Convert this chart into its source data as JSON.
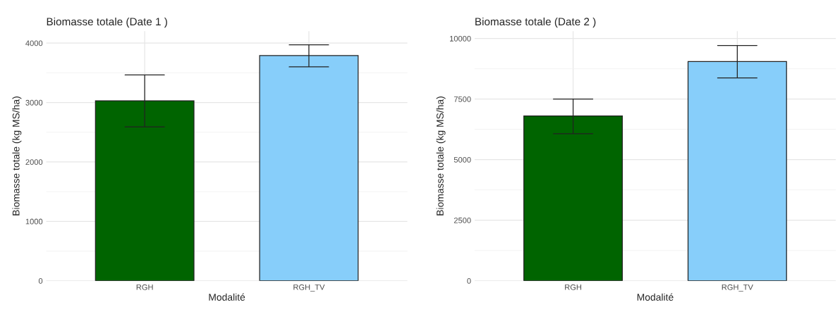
{
  "chart_data": [
    {
      "type": "bar",
      "title": "Biomasse totale (Date 1 )",
      "xlabel": "Modalité",
      "ylabel": "Biomasse totale (kg MS/ha)",
      "categories": [
        "RGH",
        "RGH_TV"
      ],
      "values": [
        3030,
        3790
      ],
      "colors": [
        "#006400",
        "#87cefa"
      ],
      "errors": [
        [
          2590,
          3465
        ],
        [
          3600,
          3970
        ]
      ],
      "ylim": [
        0,
        4200
      ],
      "yticks": [
        0,
        1000,
        2000,
        3000,
        4000
      ],
      "grid": true
    },
    {
      "type": "bar",
      "title": "Biomasse totale (Date 2 )",
      "xlabel": "Modalité",
      "ylabel": "Biomasse totale (kg MS/ha)",
      "categories": [
        "RGH",
        "RGH_TV"
      ],
      "values": [
        6800,
        9050
      ],
      "colors": [
        "#006400",
        "#87cefa"
      ],
      "errors": [
        [
          6070,
          7500
        ],
        [
          8370,
          9710
        ]
      ],
      "ylim": [
        0,
        10300
      ],
      "yticks": [
        0,
        2500,
        5000,
        7500,
        10000
      ],
      "grid": true
    }
  ]
}
